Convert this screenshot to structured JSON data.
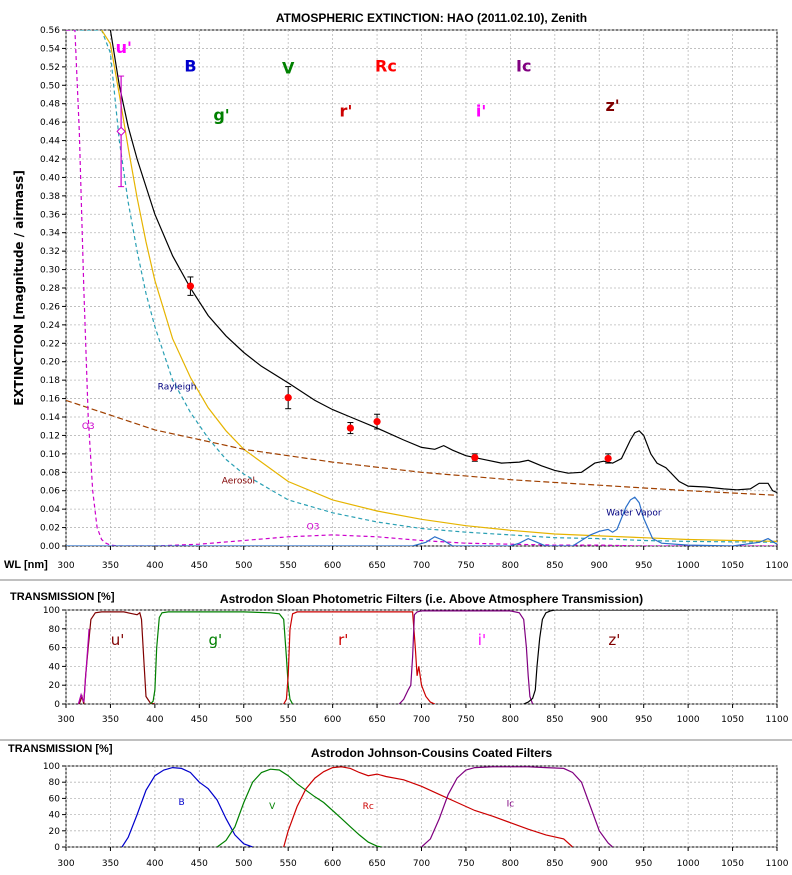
{
  "chart_data": [
    {
      "type": "line",
      "title": "ATMOSPHERIC EXTINCTION: HAO (2011.02.10), Zenith",
      "xlabel": "WL [nm]",
      "ylabel": "EXTINCTION [magnitude / airmass]",
      "xlim": [
        300,
        1100
      ],
      "ylim": [
        0,
        0.56
      ],
      "grid": true,
      "x_ticks": [
        "300",
        "350",
        "400",
        "450",
        "500",
        "550",
        "600",
        "650",
        "700",
        "750",
        "800",
        "850",
        "900",
        "950",
        "1000",
        "1050",
        "1100"
      ],
      "y_ticks": [
        "0.00",
        "0.02",
        "0.04",
        "0.06",
        "0.08",
        "0.10",
        "0.12",
        "0.14",
        "0.16",
        "0.18",
        "0.20",
        "0.22",
        "0.24",
        "0.26",
        "0.28",
        "0.30",
        "0.32",
        "0.34",
        "0.36",
        "0.38",
        "0.40",
        "0.42",
        "0.44",
        "0.46",
        "0.48",
        "0.50",
        "0.52",
        "0.54",
        "0.56"
      ],
      "band_labels": [
        {
          "text": "u'",
          "x": 365,
          "y": 0.535,
          "color": "#ff00ff"
        },
        {
          "text": "B",
          "x": 440,
          "y": 0.515,
          "color": "#0000cc"
        },
        {
          "text": "V",
          "x": 550,
          "y": 0.513,
          "color": "#008000"
        },
        {
          "text": "Rc",
          "x": 660,
          "y": 0.515,
          "color": "#ff0000"
        },
        {
          "text": "Ic",
          "x": 815,
          "y": 0.515,
          "color": "#800080"
        },
        {
          "text": "g'",
          "x": 475,
          "y": 0.462,
          "color": "#008000"
        },
        {
          "text": "r'",
          "x": 615,
          "y": 0.466,
          "color": "#cc0000"
        },
        {
          "text": "i'",
          "x": 767,
          "y": 0.466,
          "color": "#ff00ff"
        },
        {
          "text": "z'",
          "x": 915,
          "y": 0.472,
          "color": "#800000"
        }
      ],
      "annotations": [
        {
          "text": "Rayleigh",
          "x": 425,
          "y": 0.17,
          "color": "#000080"
        },
        {
          "text": "O3",
          "x": 325,
          "y": 0.127,
          "color": "#cc00cc"
        },
        {
          "text": "Aerosol",
          "x": 494,
          "y": 0.068,
          "color": "#800000"
        },
        {
          "text": "O3",
          "x": 578,
          "y": 0.018,
          "color": "#cc00cc"
        },
        {
          "text": "Water Vapor",
          "x": 939,
          "y": 0.033,
          "color": "#000080"
        }
      ],
      "series": [
        {
          "name": "Total",
          "color": "#000000",
          "x": [
            350,
            360,
            370,
            380,
            400,
            420,
            440,
            460,
            480,
            500,
            520,
            550,
            580,
            600,
            620,
            650,
            680,
            700,
            715,
            725,
            735,
            750,
            770,
            790,
            810,
            820,
            835,
            850,
            865,
            880,
            895,
            905,
            915,
            925,
            935,
            940,
            945,
            950,
            958,
            965,
            975,
            990,
            1000,
            1020,
            1040,
            1055,
            1070,
            1080,
            1090,
            1095,
            1100
          ],
          "y": [
            0.56,
            0.5,
            0.455,
            0.42,
            0.36,
            0.315,
            0.28,
            0.25,
            0.228,
            0.21,
            0.195,
            0.177,
            0.158,
            0.148,
            0.14,
            0.128,
            0.115,
            0.107,
            0.105,
            0.109,
            0.104,
            0.098,
            0.094,
            0.09,
            0.091,
            0.093,
            0.087,
            0.082,
            0.079,
            0.08,
            0.09,
            0.092,
            0.09,
            0.095,
            0.115,
            0.123,
            0.125,
            0.12,
            0.1,
            0.09,
            0.085,
            0.07,
            0.065,
            0.064,
            0.062,
            0.061,
            0.062,
            0.068,
            0.068,
            0.06,
            0.058
          ]
        },
        {
          "name": "Rayleigh",
          "color": "#2aa0b4",
          "dash": "4,3",
          "x": [
            300,
            310,
            320,
            330,
            340,
            350,
            360,
            370,
            380,
            390,
            400,
            420,
            440,
            460,
            480,
            500,
            550,
            600,
            650,
            700,
            750,
            800,
            850,
            900,
            950,
            1000,
            1100
          ],
          "y": [
            0.56,
            0.56,
            0.56,
            0.56,
            0.56,
            0.535,
            0.44,
            0.373,
            0.32,
            0.274,
            0.238,
            0.18,
            0.145,
            0.117,
            0.094,
            0.078,
            0.05,
            0.036,
            0.026,
            0.019,
            0.015,
            0.012,
            0.009,
            0.008,
            0.006,
            0.005,
            0.004
          ]
        },
        {
          "name": "Rayleigh+Aerosol",
          "color": "#e6b400",
          "dash": "",
          "x": [
            340,
            350,
            360,
            370,
            380,
            390,
            400,
            420,
            440,
            460,
            480,
            500,
            550,
            600,
            650,
            700,
            750,
            800,
            850,
            900,
            950,
            1000,
            1100
          ],
          "y": [
            0.56,
            0.545,
            0.49,
            0.432,
            0.378,
            0.33,
            0.288,
            0.225,
            0.183,
            0.15,
            0.125,
            0.105,
            0.07,
            0.05,
            0.038,
            0.029,
            0.022,
            0.017,
            0.013,
            0.011,
            0.009,
            0.007,
            0.005
          ]
        },
        {
          "name": "Aerosol",
          "color": "#a04000",
          "dash": "6,3",
          "x": [
            300,
            400,
            500,
            600,
            700,
            800,
            900,
            1000,
            1100
          ],
          "y": [
            0.158,
            0.126,
            0.105,
            0.091,
            0.08,
            0.072,
            0.066,
            0.06,
            0.055
          ]
        },
        {
          "name": "O3",
          "color": "#cc00cc",
          "dash": "4,3",
          "x": [
            300,
            310,
            315,
            320,
            325,
            330,
            335,
            340,
            345,
            350,
            360,
            400,
            450,
            500,
            550,
            600,
            650,
            700,
            750,
            800,
            850,
            900,
            950,
            1000,
            1100
          ],
          "y": [
            0.56,
            0.56,
            0.45,
            0.28,
            0.14,
            0.06,
            0.02,
            0.007,
            0.003,
            0.001,
            0.0,
            0.0,
            0.002,
            0.006,
            0.01,
            0.012,
            0.01,
            0.006,
            0.003,
            0.002,
            0.001,
            0.001,
            0.0,
            0.0,
            0.0
          ]
        },
        {
          "name": "Water Vapor",
          "color": "#2a6fc9",
          "dash": "",
          "x": [
            300,
            690,
            705,
            715,
            725,
            735,
            800,
            810,
            820,
            830,
            840,
            870,
            890,
            900,
            910,
            915,
            920,
            930,
            935,
            940,
            945,
            950,
            960,
            970,
            1000,
            1050,
            1080,
            1090,
            1100
          ],
          "y": [
            0,
            0,
            0.004,
            0.01,
            0.006,
            0,
            0,
            0.003,
            0.008,
            0.004,
            0,
            0,
            0.012,
            0.016,
            0.018,
            0.015,
            0.018,
            0.042,
            0.05,
            0.053,
            0.047,
            0.03,
            0.008,
            0.003,
            0.001,
            0,
            0.004,
            0.008,
            0.002
          ]
        }
      ],
      "points": {
        "color": "#ff0000",
        "x": [
          440,
          550,
          620,
          650,
          760,
          910
        ],
        "y": [
          0.282,
          0.161,
          0.128,
          0.135,
          0.096,
          0.095
        ],
        "err": [
          0.01,
          0.012,
          0.006,
          0.008,
          0.004,
          0.005
        ]
      },
      "u_point": {
        "x": 362,
        "y": 0.45,
        "lo": 0.39,
        "hi": 0.51,
        "color": "#cc00cc"
      }
    },
    {
      "type": "line",
      "title": "Astrodon Sloan Photometric Filters (i.e. Above Atmosphere Transmission)",
      "ylabel": "TRANSMISSION [%]",
      "xlim": [
        300,
        1100
      ],
      "ylim": [
        0,
        100
      ],
      "grid": true,
      "x_ticks": [
        "300",
        "350",
        "400",
        "450",
        "500",
        "550",
        "600",
        "650",
        "700",
        "750",
        "800",
        "850",
        "900",
        "950",
        "1000",
        "1050",
        "1100"
      ],
      "y_ticks": [
        "0",
        "20",
        "40",
        "60",
        "80",
        "100"
      ],
      "labels": [
        {
          "text": "u'",
          "x": 358,
          "y": 68,
          "color": "#800000"
        },
        {
          "text": "g'",
          "x": 468,
          "y": 68,
          "color": "#008000"
        },
        {
          "text": "r'",
          "x": 612,
          "y": 68,
          "color": "#cc0000"
        },
        {
          "text": "i'",
          "x": 768,
          "y": 68,
          "color": "#ff00ff"
        },
        {
          "text": "z'",
          "x": 917,
          "y": 68,
          "color": "#800000"
        }
      ],
      "series": [
        {
          "name": "u'",
          "color": "#800000",
          "x": [
            315,
            318,
            320,
            322,
            325,
            328,
            333,
            340,
            350,
            365,
            375,
            380,
            383,
            385,
            388,
            390,
            395,
            400
          ],
          "y": [
            0,
            8,
            0,
            30,
            60,
            90,
            97,
            98,
            98,
            98,
            96,
            95,
            97,
            90,
            40,
            8,
            1,
            0
          ]
        },
        {
          "name": "u' edge",
          "color": "#b000b0",
          "x": [
            314,
            317,
            320,
            323,
            326
          ],
          "y": [
            0,
            10,
            2,
            40,
            80
          ]
        },
        {
          "name": "g'",
          "color": "#008000",
          "x": [
            395,
            398,
            400,
            402,
            405,
            408,
            415,
            450,
            500,
            530,
            540,
            545,
            548,
            550,
            552,
            555
          ],
          "y": [
            0,
            3,
            15,
            60,
            92,
            97,
            98,
            98,
            98,
            97,
            96,
            90,
            50,
            20,
            5,
            0
          ]
        },
        {
          "name": "r'",
          "color": "#cc0000",
          "x": [
            545,
            548,
            550,
            552,
            555,
            560,
            600,
            650,
            680,
            690,
            693,
            695,
            697,
            700,
            705,
            710,
            715
          ],
          "y": [
            0,
            5,
            30,
            80,
            96,
            98,
            98,
            98,
            98,
            98,
            60,
            30,
            40,
            20,
            8,
            2,
            0
          ]
        },
        {
          "name": "i'",
          "color": "#800080",
          "x": [
            675,
            680,
            685,
            688,
            690,
            692,
            695,
            700,
            750,
            800,
            810,
            815,
            818,
            820,
            822,
            825
          ],
          "y": [
            0,
            5,
            15,
            20,
            50,
            95,
            98,
            99,
            99,
            99,
            97,
            90,
            60,
            30,
            8,
            0
          ]
        },
        {
          "name": "z'",
          "color": "#000000",
          "x": [
            815,
            820,
            825,
            828,
            830,
            833,
            836,
            840,
            845,
            850,
            900,
            950,
            1000
          ],
          "y": [
            0,
            2,
            6,
            15,
            40,
            70,
            90,
            97,
            99,
            100,
            100,
            100,
            100
          ]
        }
      ]
    },
    {
      "type": "line",
      "title": "Astrodon Johnson-Cousins Coated Filters",
      "ylabel": "TRANSMISSION [%]",
      "xlim": [
        300,
        1100
      ],
      "ylim": [
        0,
        100
      ],
      "grid": true,
      "x_ticks": [
        "300",
        "350",
        "400",
        "450",
        "500",
        "550",
        "600",
        "650",
        "700",
        "750",
        "800",
        "850",
        "900",
        "950",
        "1000",
        "1050",
        "1100"
      ],
      "y_ticks": [
        "0",
        "20",
        "40",
        "60",
        "80",
        "100"
      ],
      "labels": [
        {
          "text": "B",
          "x": 430,
          "y": 58,
          "color": "#0000cc"
        },
        {
          "text": "V",
          "x": 532,
          "y": 53,
          "color": "#008000"
        },
        {
          "text": "Rc",
          "x": 640,
          "y": 53,
          "color": "#cc0000"
        },
        {
          "text": "Ic",
          "x": 800,
          "y": 56,
          "color": "#800080"
        }
      ],
      "series": [
        {
          "name": "B",
          "color": "#0000cc",
          "x": [
            363,
            370,
            380,
            390,
            400,
            410,
            420,
            430,
            440,
            450,
            460,
            470,
            480,
            490,
            500,
            510
          ],
          "y": [
            0,
            12,
            40,
            70,
            88,
            95,
            98,
            97,
            92,
            80,
            72,
            58,
            35,
            15,
            4,
            0
          ]
        },
        {
          "name": "V",
          "color": "#008000",
          "x": [
            470,
            480,
            490,
            500,
            510,
            520,
            530,
            540,
            550,
            560,
            570,
            580,
            590,
            600,
            610,
            620,
            630,
            640,
            650,
            655
          ],
          "y": [
            0,
            8,
            25,
            55,
            80,
            92,
            96,
            95,
            88,
            78,
            70,
            62,
            55,
            45,
            35,
            25,
            15,
            6,
            1,
            0
          ]
        },
        {
          "name": "Rc",
          "color": "#cc0000",
          "x": [
            545,
            550,
            560,
            570,
            580,
            590,
            600,
            610,
            620,
            630,
            640,
            650,
            660,
            680,
            700,
            720,
            740,
            760,
            780,
            800,
            820,
            840,
            860,
            870
          ],
          "y": [
            0,
            20,
            50,
            72,
            85,
            93,
            98,
            99,
            97,
            92,
            88,
            90,
            87,
            83,
            75,
            65,
            55,
            45,
            38,
            30,
            22,
            15,
            10,
            0
          ]
        },
        {
          "name": "Ic",
          "color": "#800080",
          "x": [
            700,
            710,
            720,
            730,
            740,
            750,
            760,
            780,
            800,
            820,
            840,
            860,
            870,
            880,
            890,
            900,
            910,
            915
          ],
          "y": [
            0,
            10,
            35,
            65,
            85,
            95,
            98,
            99,
            99,
            99,
            98,
            97,
            92,
            80,
            50,
            20,
            5,
            0
          ]
        }
      ]
    }
  ]
}
